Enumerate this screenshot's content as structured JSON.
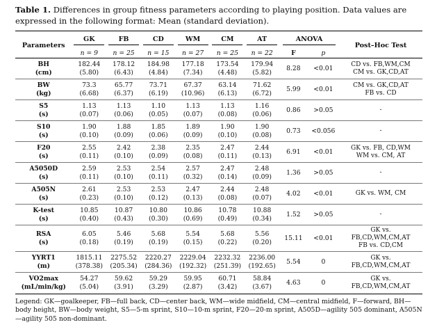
{
  "caption": {
    "label": "Table 1.",
    "text": "Differences in group fitness parameters according to playing position. Data values are expressed in the following format: Mean (standard deviation)."
  },
  "header": {
    "parameters": "Parameters",
    "groups": [
      {
        "code": "GK",
        "n": "n = 9"
      },
      {
        "code": "FB",
        "n": "n = 25"
      },
      {
        "code": "CD",
        "n": "n = 15"
      },
      {
        "code": "WM",
        "n": "n = 27"
      },
      {
        "code": "CM",
        "n": "n = 25"
      },
      {
        "code": "AT",
        "n": "n = 22"
      }
    ],
    "anova": "ANOVA",
    "f": "F",
    "p": "p",
    "posthoc": "Post–Hoc Test"
  },
  "rows": [
    {
      "name": "BH",
      "unit": "(cm)",
      "values": [
        [
          "182.44",
          "(5.80)"
        ],
        [
          "178.12",
          "(6.43)"
        ],
        [
          "184.98",
          "(4.84)"
        ],
        [
          "177.18",
          "(7.34)"
        ],
        [
          "173.54",
          "(4.48)"
        ],
        [
          "179.94",
          "(5.82)"
        ]
      ],
      "f": "8.28",
      "p": "<0.01",
      "posthoc": [
        "CD vs. FB,WM,CM",
        "CM vs. GK,CD,AT"
      ]
    },
    {
      "name": "BW",
      "unit": "(kg)",
      "values": [
        [
          "73.3",
          "(6.68)"
        ],
        [
          "65.77",
          "(6.37)"
        ],
        [
          "73.71",
          "(6.19)"
        ],
        [
          "67.37",
          "(10.96)"
        ],
        [
          "63.14",
          "(6.13)"
        ],
        [
          "71.62",
          "(6.72)"
        ]
      ],
      "f": "5.99",
      "p": "<0.01",
      "posthoc": [
        "CM vs. GK,CD,AT",
        "FB vs. CD"
      ]
    },
    {
      "name": "S5",
      "unit": "(s)",
      "values": [
        [
          "1.13",
          "(0.07)"
        ],
        [
          "1.13",
          "(0.06)"
        ],
        [
          "1.10",
          "(0.05)"
        ],
        [
          "1.13",
          "(0.07)"
        ],
        [
          "1.13",
          "(0.08)"
        ],
        [
          "1.16",
          "(0.06)"
        ]
      ],
      "f": "0.86",
      "p": ">0.05",
      "posthoc": [
        "-"
      ]
    },
    {
      "name": "S10",
      "unit": "(s)",
      "values": [
        [
          "1.90",
          "(0.10)"
        ],
        [
          "1.88",
          "(0.09)"
        ],
        [
          "1.85",
          "(0.06)"
        ],
        [
          "1.89",
          "(0.09)"
        ],
        [
          "1.90",
          "(0.10)"
        ],
        [
          "1.90",
          "(0.08)"
        ]
      ],
      "f": "0.73",
      "p": "<0.056",
      "posthoc": [
        "-"
      ]
    },
    {
      "name": "F20",
      "unit": "(s)",
      "values": [
        [
          "2.55",
          "(0.11)"
        ],
        [
          "2.42",
          "(0.10)"
        ],
        [
          "2.38",
          "(0.09)"
        ],
        [
          "2.35",
          "(0.08)"
        ],
        [
          "2.47",
          "(0.11)"
        ],
        [
          "2.44",
          "(0.13)"
        ]
      ],
      "f": "6.91",
      "p": "<0.01",
      "posthoc": [
        "GK vs. FB, CD,WM",
        "WM vs. CM, AT"
      ]
    },
    {
      "name": "A5050D",
      "unit": "(s)",
      "values": [
        [
          "2.59",
          "(0.11)"
        ],
        [
          "2.53",
          "(0.10)"
        ],
        [
          "2.54",
          "(0.11)"
        ],
        [
          "2.57",
          "(0.32)"
        ],
        [
          "2.47",
          "(0.14)"
        ],
        [
          "2.48",
          "(0.09)"
        ]
      ],
      "f": "1.36",
      "p": ">0.05",
      "posthoc": [
        "-"
      ]
    },
    {
      "name": "A505N",
      "unit": "(s)",
      "values": [
        [
          "2.61",
          "(0.23)"
        ],
        [
          "2.53",
          "(0.10)"
        ],
        [
          "2.53",
          "(0.12)"
        ],
        [
          "2.47",
          "(0.13)"
        ],
        [
          "2.44",
          "(0.08)"
        ],
        [
          "2.48",
          "(0.07)"
        ]
      ],
      "f": "4.02",
      "p": "<0.01",
      "posthoc": [
        "GK vs. WM, CM"
      ]
    },
    {
      "name": "K-test",
      "unit": "(s)",
      "values": [
        [
          "10.85",
          "(0.40)"
        ],
        [
          "10.87",
          "(0.43)"
        ],
        [
          "10.80",
          "(0.30)"
        ],
        [
          "10.86",
          "(0.69)"
        ],
        [
          "10.78",
          "(0.49)"
        ],
        [
          "10.88",
          "(0.34)"
        ]
      ],
      "f": "1.52",
      "p": ">0.05",
      "posthoc": [
        "-"
      ]
    },
    {
      "name": "RSA",
      "unit": "(s)",
      "values": [
        [
          "6.05",
          "(0.18)"
        ],
        [
          "5.46",
          "(0.19)"
        ],
        [
          "5.68",
          "(0.19)"
        ],
        [
          "5.54",
          "(0.15)"
        ],
        [
          "5.68",
          "(0.22)"
        ],
        [
          "5.56",
          "(0.20)"
        ]
      ],
      "f": "15.11",
      "p": "<0.01",
      "posthoc": [
        "GK vs.",
        "FB,CD,WM,CM,AT",
        "FB vs. CD,CM"
      ]
    },
    {
      "name": "YYRT1",
      "unit": "(m)",
      "values": [
        [
          "1815.11",
          "(378.38)"
        ],
        [
          "2275.52",
          "(205.34)"
        ],
        [
          "2220.27",
          "(284.36)"
        ],
        [
          "2229.04",
          "(192.32)"
        ],
        [
          "2232.32",
          "(251.39)"
        ],
        [
          "2236.00",
          "(192.65)"
        ]
      ],
      "f": "5.54",
      "p": "0",
      "posthoc": [
        "GK vs.",
        "FB,CD,WM,CM,AT"
      ]
    },
    {
      "name": "VO2max",
      "unit": "(mL/min/kg)",
      "values": [
        [
          "54.27",
          "(5.04)"
        ],
        [
          "59.62",
          "(3.91)"
        ],
        [
          "59.29",
          "(3.29)"
        ],
        [
          "59.95",
          "(2.87)"
        ],
        [
          "60.71",
          "(3.42)"
        ],
        [
          "58.84",
          "(3.67)"
        ]
      ],
      "f": "4.63",
      "p": "0",
      "posthoc": [
        "GK vs.",
        "FB,CD,WM,CM,AT"
      ]
    }
  ],
  "legend": "Legend: GK—goalkeeper, FB—full back, CD—center back, WM—wide midfield, CM—central midfield, F—forward, BH—body height, BW—body weight, S5—5-m sprint, S10—10-m sprint, F20—20-m sprint, A505D—agility 505 dominant, A505N—agility 505 non-dominant."
}
